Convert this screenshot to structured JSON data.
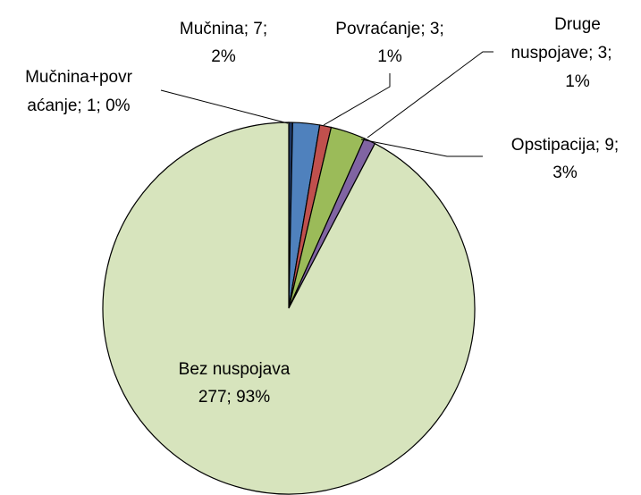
{
  "chart_data": {
    "type": "pie",
    "categories": [
      "Mučnina+povraćanje",
      "Mučnina",
      "Povraćanje",
      "Opstipacija",
      "Druge nuspojave",
      "Bez nuspojava"
    ],
    "values": [
      1,
      7,
      3,
      9,
      3,
      277
    ],
    "colors": [
      "#1f3864",
      "#4f81bd",
      "#c0504d",
      "#9bbb59",
      "#8064a2",
      "#d7e4bd"
    ],
    "data_labels": [
      [
        "Mučnina+povr",
        "aćanje; 1; 0%"
      ],
      [
        "Mučnina; 7;",
        "2%"
      ],
      [
        "Povraćanje; 3;",
        "1%"
      ],
      [
        "Opstipacija; 9;",
        "3%"
      ],
      [
        "Druge",
        "nuspojave; 3;",
        "1%"
      ],
      [
        "Bez nuspojava",
        "277; 93%"
      ]
    ]
  }
}
